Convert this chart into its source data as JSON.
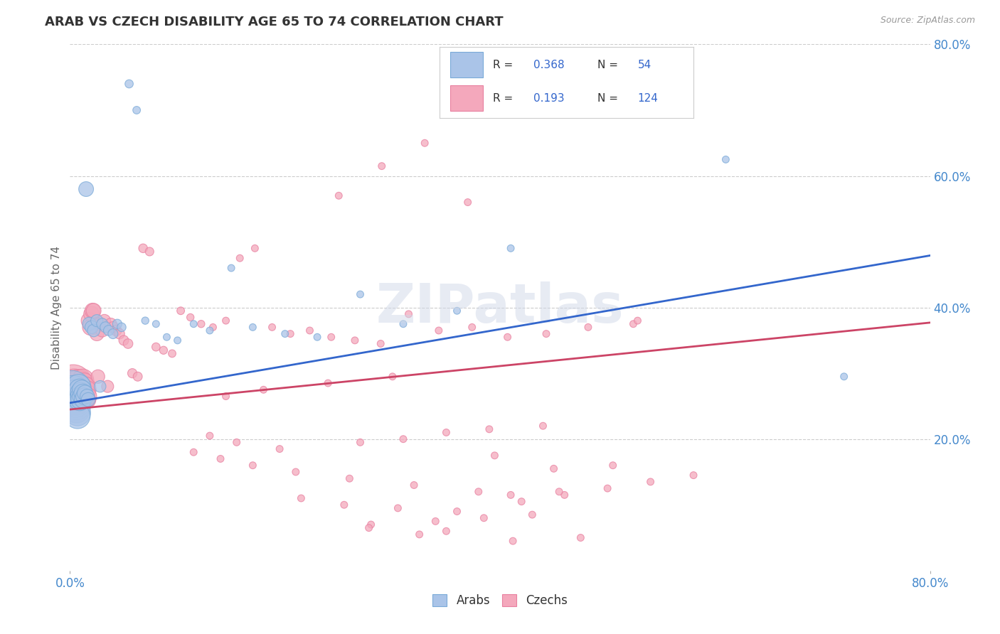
{
  "title": "ARAB VS CZECH DISABILITY AGE 65 TO 74 CORRELATION CHART",
  "source": "Source: ZipAtlas.com",
  "ylabel": "Disability Age 65 to 74",
  "xlim": [
    0.0,
    0.8
  ],
  "ylim": [
    0.0,
    0.8
  ],
  "xtick_positions": [
    0.0,
    0.8
  ],
  "xtick_labels": [
    "0.0%",
    "80.0%"
  ],
  "ytick_positions": [
    0.2,
    0.4,
    0.6,
    0.8
  ],
  "ytick_labels": [
    "20.0%",
    "40.0%",
    "60.0%",
    "80.0%"
  ],
  "grid_yticks": [
    0.2,
    0.4,
    0.6,
    0.8
  ],
  "arab_color": "#aac4e8",
  "czech_color": "#f4a8bc",
  "arab_edge_color": "#7aaad8",
  "czech_edge_color": "#e880a0",
  "arab_line_color": "#3366cc",
  "czech_line_color": "#cc4466",
  "arab_R": 0.368,
  "arab_N": 54,
  "czech_R": 0.193,
  "czech_N": 124,
  "watermark": "ZIPatlas",
  "background_color": "#ffffff",
  "grid_color": "#cccccc",
  "tick_color": "#4488cc",
  "legend_text_color": "#333333",
  "legend_value_color": "#3366cc",
  "arab_line_intercept": 0.255,
  "arab_line_slope_per_unit": 0.28,
  "czech_line_intercept": 0.245,
  "czech_line_slope_per_unit": 0.165,
  "arab_x": [
    0.002,
    0.003,
    0.004,
    0.005,
    0.005,
    0.006,
    0.006,
    0.007,
    0.007,
    0.008,
    0.008,
    0.009,
    0.009,
    0.01,
    0.01,
    0.01,
    0.011,
    0.011,
    0.012,
    0.012,
    0.013,
    0.014,
    0.015,
    0.016,
    0.017,
    0.018,
    0.02,
    0.022,
    0.025,
    0.028,
    0.03,
    0.033,
    0.036,
    0.04,
    0.044,
    0.048,
    0.055,
    0.062,
    0.07,
    0.08,
    0.09,
    0.1,
    0.115,
    0.13,
    0.15,
    0.17,
    0.2,
    0.23,
    0.27,
    0.31,
    0.36,
    0.41,
    0.61,
    0.72
  ],
  "arab_y": [
    0.275,
    0.27,
    0.265,
    0.26,
    0.255,
    0.25,
    0.245,
    0.24,
    0.235,
    0.28,
    0.265,
    0.26,
    0.275,
    0.27,
    0.265,
    0.26,
    0.275,
    0.265,
    0.27,
    0.26,
    0.265,
    0.27,
    0.58,
    0.265,
    0.26,
    0.375,
    0.37,
    0.365,
    0.38,
    0.28,
    0.375,
    0.37,
    0.365,
    0.36,
    0.375,
    0.37,
    0.74,
    0.7,
    0.38,
    0.375,
    0.355,
    0.35,
    0.375,
    0.365,
    0.46,
    0.37,
    0.36,
    0.355,
    0.42,
    0.375,
    0.395,
    0.49,
    0.625,
    0.295
  ],
  "arab_size": [
    300,
    250,
    220,
    200,
    180,
    160,
    150,
    140,
    130,
    120,
    110,
    100,
    95,
    90,
    85,
    80,
    75,
    70,
    65,
    60,
    55,
    50,
    45,
    42,
    40,
    38,
    35,
    32,
    30,
    28,
    26,
    24,
    22,
    20,
    18,
    16,
    14,
    12,
    11,
    10,
    10,
    10,
    10,
    10,
    10,
    10,
    10,
    10,
    10,
    10,
    10,
    10,
    10,
    10
  ],
  "czech_x": [
    0.001,
    0.002,
    0.003,
    0.004,
    0.004,
    0.005,
    0.005,
    0.006,
    0.006,
    0.007,
    0.007,
    0.008,
    0.008,
    0.009,
    0.009,
    0.01,
    0.01,
    0.01,
    0.011,
    0.011,
    0.011,
    0.012,
    0.012,
    0.013,
    0.013,
    0.014,
    0.014,
    0.015,
    0.015,
    0.016,
    0.016,
    0.017,
    0.018,
    0.019,
    0.02,
    0.021,
    0.022,
    0.023,
    0.025,
    0.026,
    0.028,
    0.03,
    0.032,
    0.035,
    0.038,
    0.04,
    0.043,
    0.046,
    0.05,
    0.054,
    0.058,
    0.063,
    0.068,
    0.074,
    0.08,
    0.087,
    0.095,
    0.103,
    0.112,
    0.122,
    0.133,
    0.145,
    0.158,
    0.172,
    0.188,
    0.205,
    0.223,
    0.243,
    0.265,
    0.289,
    0.315,
    0.343,
    0.374,
    0.407,
    0.443,
    0.482,
    0.524,
    0.528,
    0.395,
    0.35,
    0.31,
    0.27,
    0.39,
    0.42,
    0.46,
    0.5,
    0.54,
    0.58,
    0.44,
    0.38,
    0.32,
    0.26,
    0.21,
    0.17,
    0.14,
    0.115,
    0.25,
    0.33,
    0.29,
    0.37,
    0.195,
    0.155,
    0.13,
    0.3,
    0.24,
    0.18,
    0.145,
    0.34,
    0.385,
    0.43,
    0.36,
    0.305,
    0.255,
    0.215,
    0.41,
    0.455,
    0.35,
    0.28,
    0.325,
    0.278,
    0.45,
    0.505,
    0.412,
    0.475
  ],
  "czech_y": [
    0.27,
    0.265,
    0.285,
    0.28,
    0.27,
    0.265,
    0.26,
    0.275,
    0.265,
    0.28,
    0.27,
    0.285,
    0.275,
    0.28,
    0.265,
    0.275,
    0.26,
    0.27,
    0.28,
    0.285,
    0.275,
    0.29,
    0.28,
    0.285,
    0.27,
    0.275,
    0.26,
    0.28,
    0.27,
    0.275,
    0.26,
    0.265,
    0.38,
    0.37,
    0.39,
    0.395,
    0.395,
    0.37,
    0.36,
    0.295,
    0.375,
    0.365,
    0.38,
    0.28,
    0.375,
    0.37,
    0.365,
    0.36,
    0.35,
    0.345,
    0.3,
    0.295,
    0.49,
    0.485,
    0.34,
    0.335,
    0.33,
    0.395,
    0.385,
    0.375,
    0.37,
    0.38,
    0.475,
    0.49,
    0.37,
    0.36,
    0.365,
    0.355,
    0.35,
    0.345,
    0.39,
    0.365,
    0.37,
    0.355,
    0.36,
    0.37,
    0.375,
    0.38,
    0.175,
    0.21,
    0.2,
    0.195,
    0.215,
    0.105,
    0.115,
    0.125,
    0.135,
    0.145,
    0.22,
    0.12,
    0.13,
    0.14,
    0.15,
    0.16,
    0.17,
    0.18,
    0.57,
    0.65,
    0.615,
    0.56,
    0.185,
    0.195,
    0.205,
    0.295,
    0.285,
    0.275,
    0.265,
    0.075,
    0.08,
    0.085,
    0.09,
    0.095,
    0.1,
    0.11,
    0.115,
    0.12,
    0.06,
    0.07,
    0.055,
    0.065,
    0.155,
    0.16,
    0.045,
    0.05
  ],
  "czech_size": [
    400,
    320,
    280,
    250,
    230,
    210,
    200,
    190,
    180,
    170,
    160,
    150,
    140,
    135,
    130,
    125,
    120,
    115,
    110,
    105,
    100,
    95,
    90,
    85,
    82,
    78,
    75,
    72,
    68,
    65,
    62,
    58,
    55,
    52,
    50,
    48,
    45,
    42,
    40,
    38,
    36,
    34,
    32,
    30,
    28,
    26,
    24,
    22,
    20,
    19,
    18,
    17,
    16,
    15,
    14,
    13,
    12,
    12,
    11,
    11,
    10,
    10,
    10,
    10,
    10,
    10,
    10,
    10,
    10,
    10,
    10,
    10,
    10,
    10,
    10,
    10,
    10,
    10,
    10,
    10,
    10,
    10,
    10,
    10,
    10,
    10,
    10,
    10,
    10,
    10,
    10,
    10,
    10,
    10,
    10,
    10,
    10,
    10,
    10,
    10,
    10,
    10,
    10,
    10,
    10,
    10,
    10,
    10,
    10,
    10,
    10,
    10,
    10,
    10,
    10,
    10,
    10,
    10,
    10,
    10,
    10,
    10,
    10,
    10
  ]
}
